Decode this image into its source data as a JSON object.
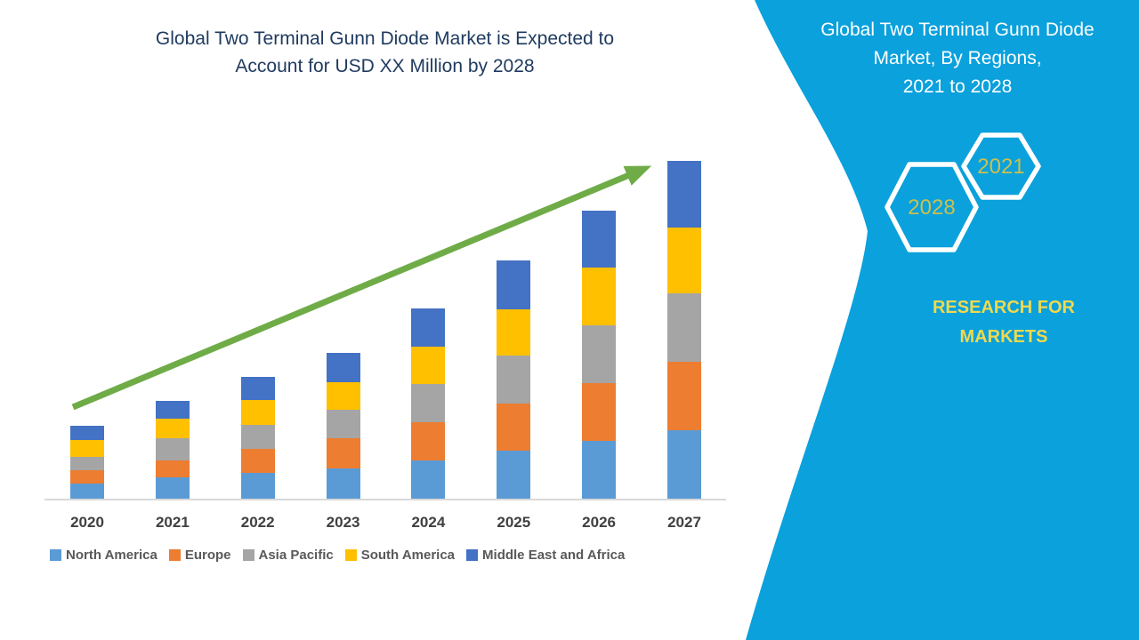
{
  "header": {
    "title": "Global Two Terminal Gunn Diode Market is Expected to\nAccount for USD XX Million by 2028"
  },
  "chart_data": {
    "type": "bar",
    "stacked": true,
    "title": "Global Two Terminal Gunn Diode Market is Expected to Account for USD XX Million by 2028",
    "xlabel": "",
    "ylabel": "",
    "y_axis_labels_visible": false,
    "grid": false,
    "legend_position": "bottom",
    "ylim": [
      0,
      400
    ],
    "categories": [
      "2020",
      "2021",
      "2022",
      "2023",
      "2024",
      "2025",
      "2026",
      "2027"
    ],
    "series": [
      {
        "name": "North America",
        "color": "#5B9BD5",
        "values": [
          17,
          24,
          29,
          34,
          43,
          54,
          65,
          77
        ]
      },
      {
        "name": "Europe",
        "color": "#ED7D31",
        "values": [
          15,
          19,
          27,
          34,
          43,
          53,
          65,
          77
        ]
      },
      {
        "name": "Asia Pacific",
        "color": "#A5A5A5",
        "values": [
          15,
          25,
          27,
          32,
          43,
          54,
          65,
          77
        ]
      },
      {
        "name": "South America",
        "color": "#FFC000",
        "values": [
          19,
          22,
          28,
          31,
          42,
          52,
          65,
          74
        ]
      },
      {
        "name": "Middle East and Africa",
        "color": "#4472C4",
        "values": [
          16,
          20,
          26,
          33,
          43,
          55,
          64,
          75
        ]
      }
    ],
    "annotations": [
      {
        "type": "trend-arrow",
        "direction": "up-right"
      }
    ]
  },
  "side_panel": {
    "title": "Global Two Terminal Gunn Diode\nMarket, By Regions,\n2021 to 2028",
    "hexagons": [
      {
        "label": "2021"
      },
      {
        "label": "2028"
      }
    ],
    "brand": "RESEARCH FOR\nMARKETS"
  },
  "colors": {
    "title_navy": "#1F3A5F",
    "accent_cyan": "#0AA1DC",
    "arrow_green": "#6FAC47",
    "axis_line": "#D9D9D9",
    "tick_label": "#404040",
    "legend_text": "#595959",
    "panel_title_text": "#FFFFFF",
    "hexagon_outline": "#FFFFFF",
    "hexagon_year_text": "#CCC04E",
    "brand_yellow": "#EFD94F"
  }
}
